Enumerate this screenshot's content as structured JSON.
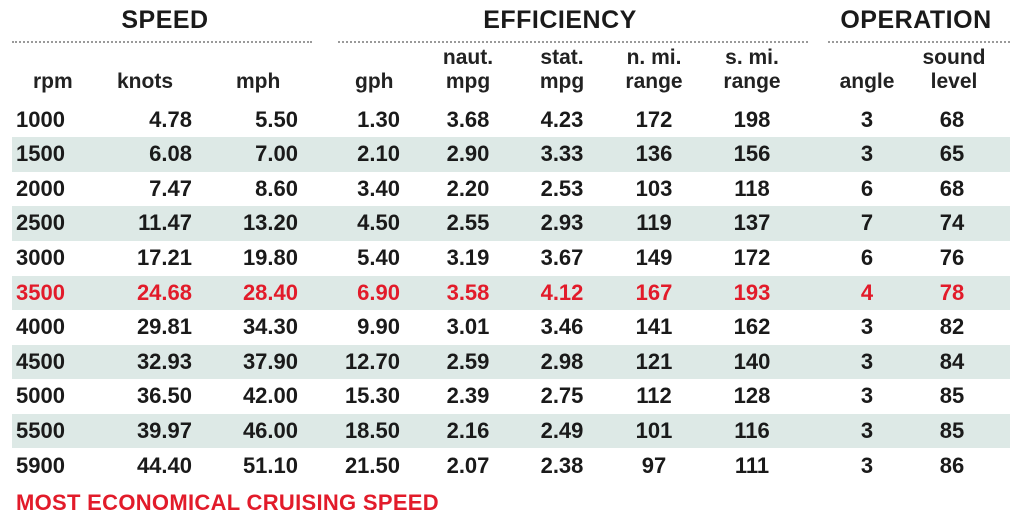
{
  "groups": {
    "speed": "SPEED",
    "efficiency": "EFFICIENCY",
    "operation": "OPERATION"
  },
  "headers": {
    "rpm": [
      "rpm"
    ],
    "knots": [
      "knots"
    ],
    "mph": [
      "mph"
    ],
    "gph": [
      "gph"
    ],
    "naut_mpg": [
      "naut.",
      "mpg"
    ],
    "stat_mpg": [
      "stat.",
      "mpg"
    ],
    "n_range": [
      "n. mi.",
      "range"
    ],
    "s_range": [
      "s. mi.",
      "range"
    ],
    "angle": [
      "angle"
    ],
    "sound": [
      "sound",
      "level"
    ]
  },
  "rows": [
    [
      "1000",
      "4.78",
      "5.50",
      "1.30",
      "3.68",
      "4.23",
      "172",
      "198",
      "3",
      "68"
    ],
    [
      "1500",
      "6.08",
      "7.00",
      "2.10",
      "2.90",
      "3.33",
      "136",
      "156",
      "3",
      "65"
    ],
    [
      "2000",
      "7.47",
      "8.60",
      "3.40",
      "2.20",
      "2.53",
      "103",
      "118",
      "6",
      "68"
    ],
    [
      "2500",
      "11.47",
      "13.20",
      "4.50",
      "2.55",
      "2.93",
      "119",
      "137",
      "7",
      "74"
    ],
    [
      "3000",
      "17.21",
      "19.80",
      "5.40",
      "3.19",
      "3.67",
      "149",
      "172",
      "6",
      "76"
    ],
    [
      "3500",
      "24.68",
      "28.40",
      "6.90",
      "3.58",
      "4.12",
      "167",
      "193",
      "4",
      "78"
    ],
    [
      "4000",
      "29.81",
      "34.30",
      "9.90",
      "3.01",
      "3.46",
      "141",
      "162",
      "3",
      "82"
    ],
    [
      "4500",
      "32.93",
      "37.90",
      "12.70",
      "2.59",
      "2.98",
      "121",
      "140",
      "3",
      "84"
    ],
    [
      "5000",
      "36.50",
      "42.00",
      "15.30",
      "2.39",
      "2.75",
      "112",
      "128",
      "3",
      "85"
    ],
    [
      "5500",
      "39.97",
      "46.00",
      "18.50",
      "2.16",
      "2.49",
      "101",
      "116",
      "3",
      "85"
    ],
    [
      "5900",
      "44.40",
      "51.10",
      "21.50",
      "2.07",
      "2.38",
      "97",
      "111",
      "3",
      "86"
    ]
  ],
  "highlight_row_index": 5,
  "colors": {
    "highlight": "#e21b2a",
    "row_shade": "#dde9e6"
  },
  "footer": "MOST ECONOMICAL CRUISING SPEED"
}
